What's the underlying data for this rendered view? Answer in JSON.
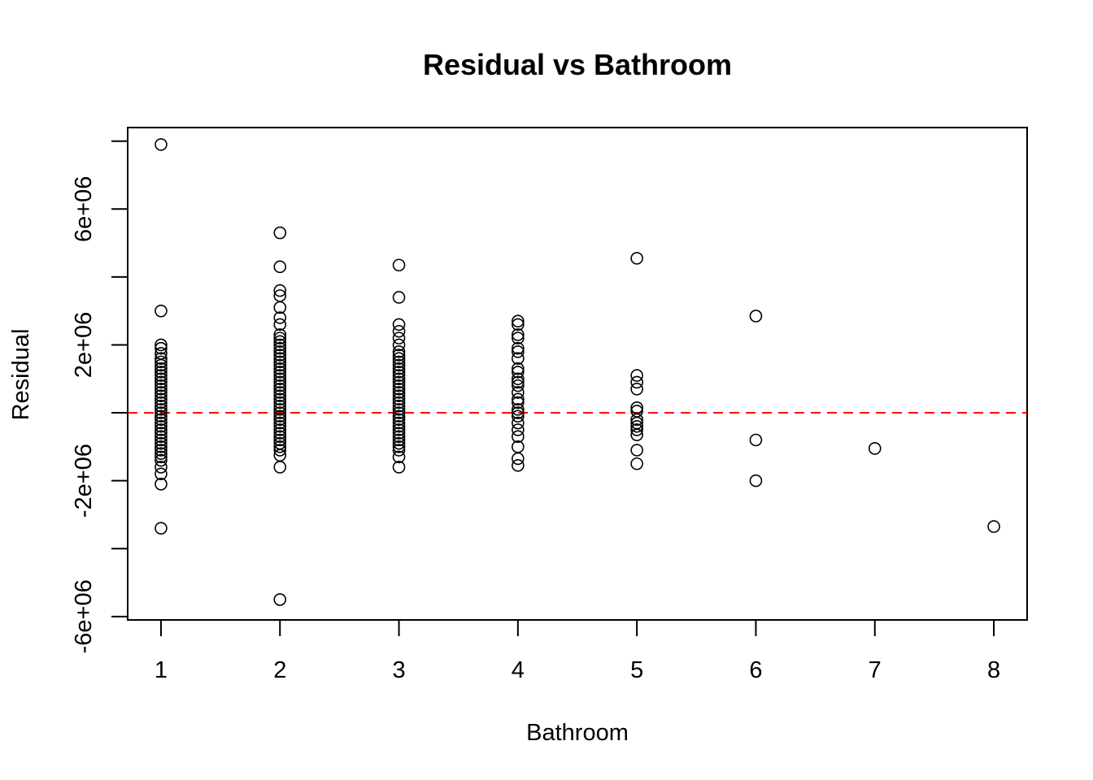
{
  "chart_data": {
    "type": "scatter",
    "title": "Residual vs Bathroom",
    "xlabel": "Bathroom",
    "ylabel": "Residual",
    "xlim": [
      0.72,
      8.28
    ],
    "ylim": [
      -6100000,
      8400000
    ],
    "x_ticks": [
      1,
      2,
      3,
      4,
      5,
      6,
      7,
      8
    ],
    "x_tick_labels": [
      "1",
      "2",
      "3",
      "4",
      "5",
      "6",
      "7",
      "8"
    ],
    "y_ticks": [
      -6000000,
      -4000000,
      -2000000,
      0,
      2000000,
      4000000,
      6000000,
      8000000
    ],
    "y_tick_labels": [
      "-6e+06",
      "",
      "-2e+06",
      "",
      "2e+06",
      "",
      "6e+06",
      ""
    ],
    "grid": false,
    "reference_line": {
      "y": 0,
      "style": "dashed",
      "color": "#ff0000"
    },
    "points": {
      "x1": [
        7900000.0,
        3000000.0,
        -3400000.0,
        -2100000.0,
        -1800000.0,
        -1600000.0,
        -1400000.0,
        -1300000.0,
        -1200000.0,
        -1100000.0,
        -1000000.0,
        -900000.0,
        -800000.0,
        -700000.0,
        -600000.0,
        -500000.0,
        -400000.0,
        -300000.0,
        -200000.0,
        -100000.0,
        0.0,
        100000.0,
        200000.0,
        300000.0,
        400000.0,
        500000.0,
        600000.0,
        700000.0,
        800000.0,
        900000.0,
        1000000.0,
        1100000.0,
        1200000.0,
        1300000.0,
        1400000.0,
        1500000.0,
        1600000.0,
        1750000.0,
        1900000.0,
        2000000.0
      ],
      "x2": [
        5300000.0,
        4300000.0,
        3600000.0,
        3450000.0,
        3100000.0,
        2800000.0,
        2600000.0,
        2300000.0,
        2200000.0,
        2100000.0,
        2000000.0,
        1900000.0,
        1800000.0,
        1700000.0,
        1600000.0,
        1500000.0,
        1400000.0,
        1300000.0,
        1200000.0,
        1100000.0,
        1000000.0,
        900000.0,
        800000.0,
        700000.0,
        600000.0,
        500000.0,
        400000.0,
        300000.0,
        200000.0,
        100000.0,
        0.0,
        -100000.0,
        -200000.0,
        -300000.0,
        -400000.0,
        -500000.0,
        -600000.0,
        -700000.0,
        -800000.0,
        -900000.0,
        -1000000.0,
        -1100000.0,
        -1250000.0,
        -1600000.0,
        -5500000.0
      ],
      "x3": [
        4350000.0,
        3400000.0,
        2600000.0,
        2400000.0,
        2200000.0,
        2000000.0,
        1800000.0,
        1700000.0,
        1600000.0,
        1500000.0,
        1400000.0,
        1300000.0,
        1200000.0,
        1100000.0,
        1000000.0,
        900000.0,
        800000.0,
        700000.0,
        600000.0,
        500000.0,
        400000.0,
        300000.0,
        200000.0,
        100000.0,
        0.0,
        -100000.0,
        -200000.0,
        -300000.0,
        -400000.0,
        -500000.0,
        -600000.0,
        -700000.0,
        -800000.0,
        -900000.0,
        -1000000.0,
        -1100000.0,
        -1300000.0,
        -1600000.0
      ],
      "x4": [
        2700000.0,
        2600000.0,
        2300000.0,
        2200000.0,
        1900000.0,
        1800000.0,
        1600000.0,
        1300000.0,
        1200000.0,
        1000000.0,
        900000.0,
        800000.0,
        600000.0,
        400000.0,
        300000.0,
        100000.0,
        0.0,
        -100000.0,
        -300000.0,
        -500000.0,
        -700000.0,
        -1000000.0,
        -1350000.0,
        -1550000.0
      ],
      "x5": [
        4550000.0,
        1100000.0,
        900000.0,
        700000.0,
        150000.0,
        50000.0,
        -200000.0,
        -300000.0,
        -400000.0,
        -500000.0,
        -650000.0,
        -1100000.0,
        -1500000.0
      ],
      "x6": [
        2850000.0,
        -800000.0,
        -2000000.0
      ],
      "x7": [
        -1050000.0
      ],
      "x8": [
        -3350000.0
      ]
    }
  },
  "colors": {
    "points": "#000000",
    "reference_line": "#ff0000",
    "frame": "#000000"
  }
}
